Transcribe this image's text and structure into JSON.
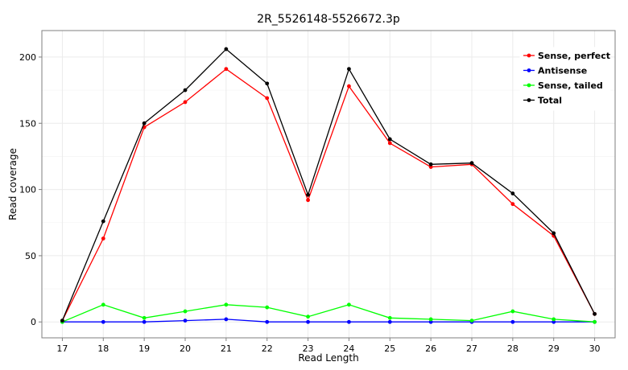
{
  "chart_data": {
    "type": "line",
    "title": "2R_5526148-5526672.3p",
    "xlabel": "Read Length",
    "ylabel": "Read coverage",
    "x": [
      17,
      18,
      19,
      20,
      21,
      22,
      23,
      24,
      25,
      26,
      27,
      28,
      29,
      30
    ],
    "xlim": [
      16.5,
      30.5
    ],
    "ylim": [
      -12,
      220
    ],
    "yticks": [
      0,
      50,
      100,
      150,
      200
    ],
    "grid": true,
    "legend_position": "top-right",
    "series": [
      {
        "name": "Sense, perfect",
        "color": "#ff0000",
        "values": [
          1,
          63,
          147,
          166,
          191,
          169,
          92,
          178,
          135,
          117,
          119,
          89,
          65,
          6
        ]
      },
      {
        "name": "Antisense",
        "color": "#0000ff",
        "values": [
          0,
          0,
          0,
          1,
          2,
          0,
          0,
          0,
          0,
          0,
          0,
          0,
          0,
          0
        ]
      },
      {
        "name": "Sense, tailed",
        "color": "#00ff00",
        "values": [
          0,
          13,
          3,
          8,
          13,
          11,
          4,
          13,
          3,
          2,
          1,
          8,
          2,
          0
        ]
      },
      {
        "name": "Total",
        "color": "#000000",
        "values": [
          1,
          76,
          150,
          175,
          206,
          180,
          96,
          191,
          138,
          119,
          120,
          97,
          67,
          6
        ]
      }
    ]
  }
}
